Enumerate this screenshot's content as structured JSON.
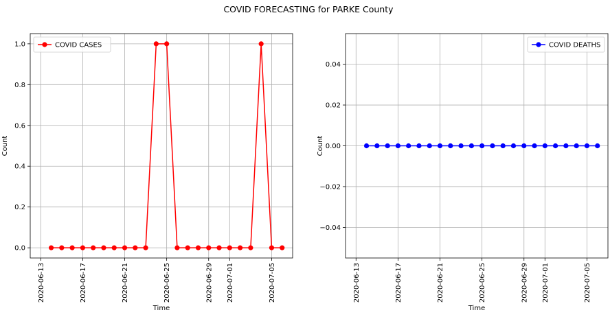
{
  "figure": {
    "title": "COVID FORECASTING for PARKE County"
  },
  "chart_data": [
    {
      "type": "line",
      "title": "",
      "xlabel": "Time",
      "ylabel": "Count",
      "x_type": "date",
      "x_ticks": [
        "2020-06-13",
        "2020-06-17",
        "2020-06-21",
        "2020-06-25",
        "2020-06-29",
        "2020-07-01",
        "2020-07-05"
      ],
      "xlim": [
        "2020-06-12",
        "2020-07-07"
      ],
      "ylim": [
        -0.05,
        1.05
      ],
      "y_ticks": [
        "0.0",
        "0.2",
        "0.4",
        "0.6",
        "0.8",
        "1.0"
      ],
      "grid": true,
      "legend": "top-left",
      "series": [
        {
          "name": "COVID CASES",
          "color": "#ff0000",
          "marker": "circle",
          "x": [
            "2020-06-14",
            "2020-06-15",
            "2020-06-16",
            "2020-06-17",
            "2020-06-18",
            "2020-06-19",
            "2020-06-20",
            "2020-06-21",
            "2020-06-22",
            "2020-06-23",
            "2020-06-24",
            "2020-06-25",
            "2020-06-26",
            "2020-06-27",
            "2020-06-28",
            "2020-06-29",
            "2020-06-30",
            "2020-07-01",
            "2020-07-02",
            "2020-07-03",
            "2020-07-04",
            "2020-07-05",
            "2020-07-06"
          ],
          "values": [
            0,
            0,
            0,
            0,
            0,
            0,
            0,
            0,
            0,
            0,
            1,
            1,
            0,
            0,
            0,
            0,
            0,
            0,
            0,
            0,
            1,
            0,
            0
          ]
        }
      ]
    },
    {
      "type": "line",
      "title": "",
      "xlabel": "Time",
      "ylabel": "Count",
      "x_type": "date",
      "x_ticks": [
        "2020-06-13",
        "2020-06-17",
        "2020-06-21",
        "2020-06-25",
        "2020-06-29",
        "2020-07-01",
        "2020-07-05"
      ],
      "xlim": [
        "2020-06-12",
        "2020-07-07"
      ],
      "ylim": [
        -0.055,
        0.055
      ],
      "y_ticks": [
        "0.04",
        "0.02",
        "0.00",
        "−0.02",
        "−0.04"
      ],
      "grid": true,
      "legend": "top-right",
      "series": [
        {
          "name": "COVID DEATHS",
          "color": "#0000ff",
          "marker": "circle",
          "x": [
            "2020-06-14",
            "2020-06-15",
            "2020-06-16",
            "2020-06-17",
            "2020-06-18",
            "2020-06-19",
            "2020-06-20",
            "2020-06-21",
            "2020-06-22",
            "2020-06-23",
            "2020-06-24",
            "2020-06-25",
            "2020-06-26",
            "2020-06-27",
            "2020-06-28",
            "2020-06-29",
            "2020-06-30",
            "2020-07-01",
            "2020-07-02",
            "2020-07-03",
            "2020-07-04",
            "2020-07-05",
            "2020-07-06"
          ],
          "values": [
            0,
            0,
            0,
            0,
            0,
            0,
            0,
            0,
            0,
            0,
            0,
            0,
            0,
            0,
            0,
            0,
            0,
            0,
            0,
            0,
            0,
            0,
            0
          ]
        }
      ]
    }
  ]
}
